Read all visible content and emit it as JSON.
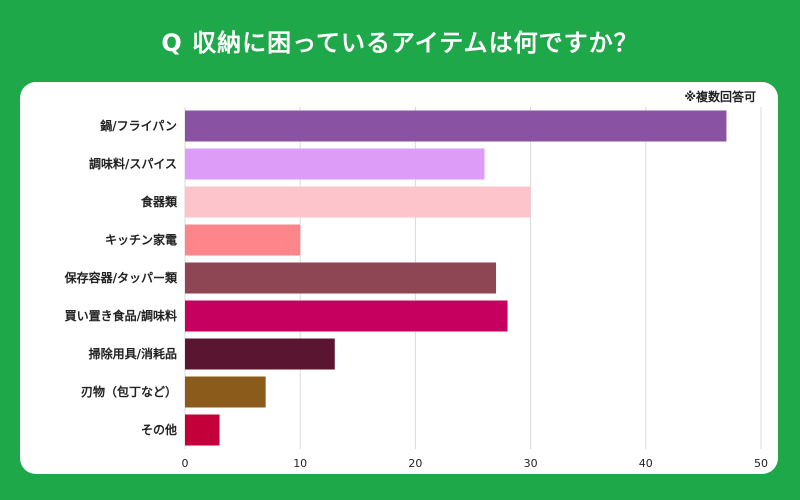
{
  "title": "Q 収納に困っているアイテムは何ですか？",
  "note": "※複数回答可",
  "chart_data": {
    "type": "bar",
    "orientation": "horizontal",
    "title": "Q 収納に困っているアイテムは何ですか？",
    "xlabel": "",
    "ylabel": "",
    "xlim": [
      0,
      50
    ],
    "xticks": [
      0,
      10,
      20,
      30,
      40,
      50
    ],
    "grid": true,
    "categories": [
      "鍋/フライパン",
      "調味料/スパイス",
      "食器類",
      "キッチン家電",
      "保存容器/タッパー類",
      "買い置き食品/調味料",
      "掃除用具/消耗品",
      "刃物（包丁など）",
      "その他"
    ],
    "values": [
      47,
      26,
      30,
      10,
      27,
      28,
      13,
      7,
      3
    ],
    "colors": [
      "#8a52a3",
      "#dc9cf8",
      "#fec4cb",
      "#fe868b",
      "#8f4654",
      "#c5005e",
      "#5a1531",
      "#8b5b1b",
      "#c4003a"
    ]
  }
}
